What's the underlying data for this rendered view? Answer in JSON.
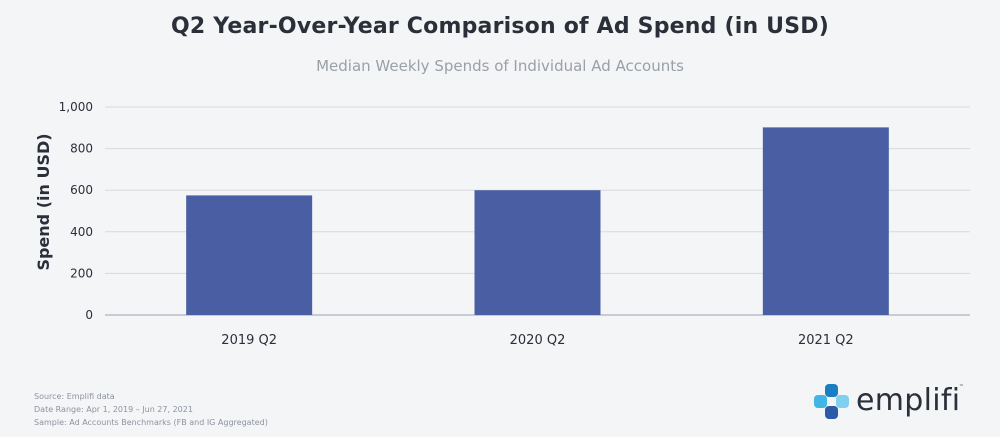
{
  "title": "Q2 Year-Over-Year Comparison of Ad Spend (in USD)",
  "subtitle": "Median Weekly Spends of Individual Ad Accounts",
  "chart_data": {
    "type": "bar",
    "categories": [
      "2019 Q2",
      "2020 Q2",
      "2021 Q2"
    ],
    "values": [
      575,
      600,
      902
    ],
    "ylabel": "Spend (in USD)",
    "xlabel": "",
    "ylim": [
      0,
      1000
    ],
    "yticks": [
      0,
      200,
      400,
      600,
      800,
      1000
    ],
    "ytick_labels": [
      "0",
      "200",
      "400",
      "600",
      "800",
      "1,000"
    ],
    "grid": true,
    "bar_color": "#4a5fa3"
  },
  "footnotes": {
    "source": "Source: Emplifi data",
    "date_range": "Date Range: Apr 1, 2019 – Jun 27, 2021",
    "sample": "Sample: Ad Accounts Benchmarks (FB and IG Aggregated)"
  },
  "logo": {
    "text": "emplifi",
    "trademark": "™",
    "colors": [
      "#1a7ec3",
      "#3fb6e6",
      "#7fd0f0",
      "#2a5aa8"
    ]
  }
}
